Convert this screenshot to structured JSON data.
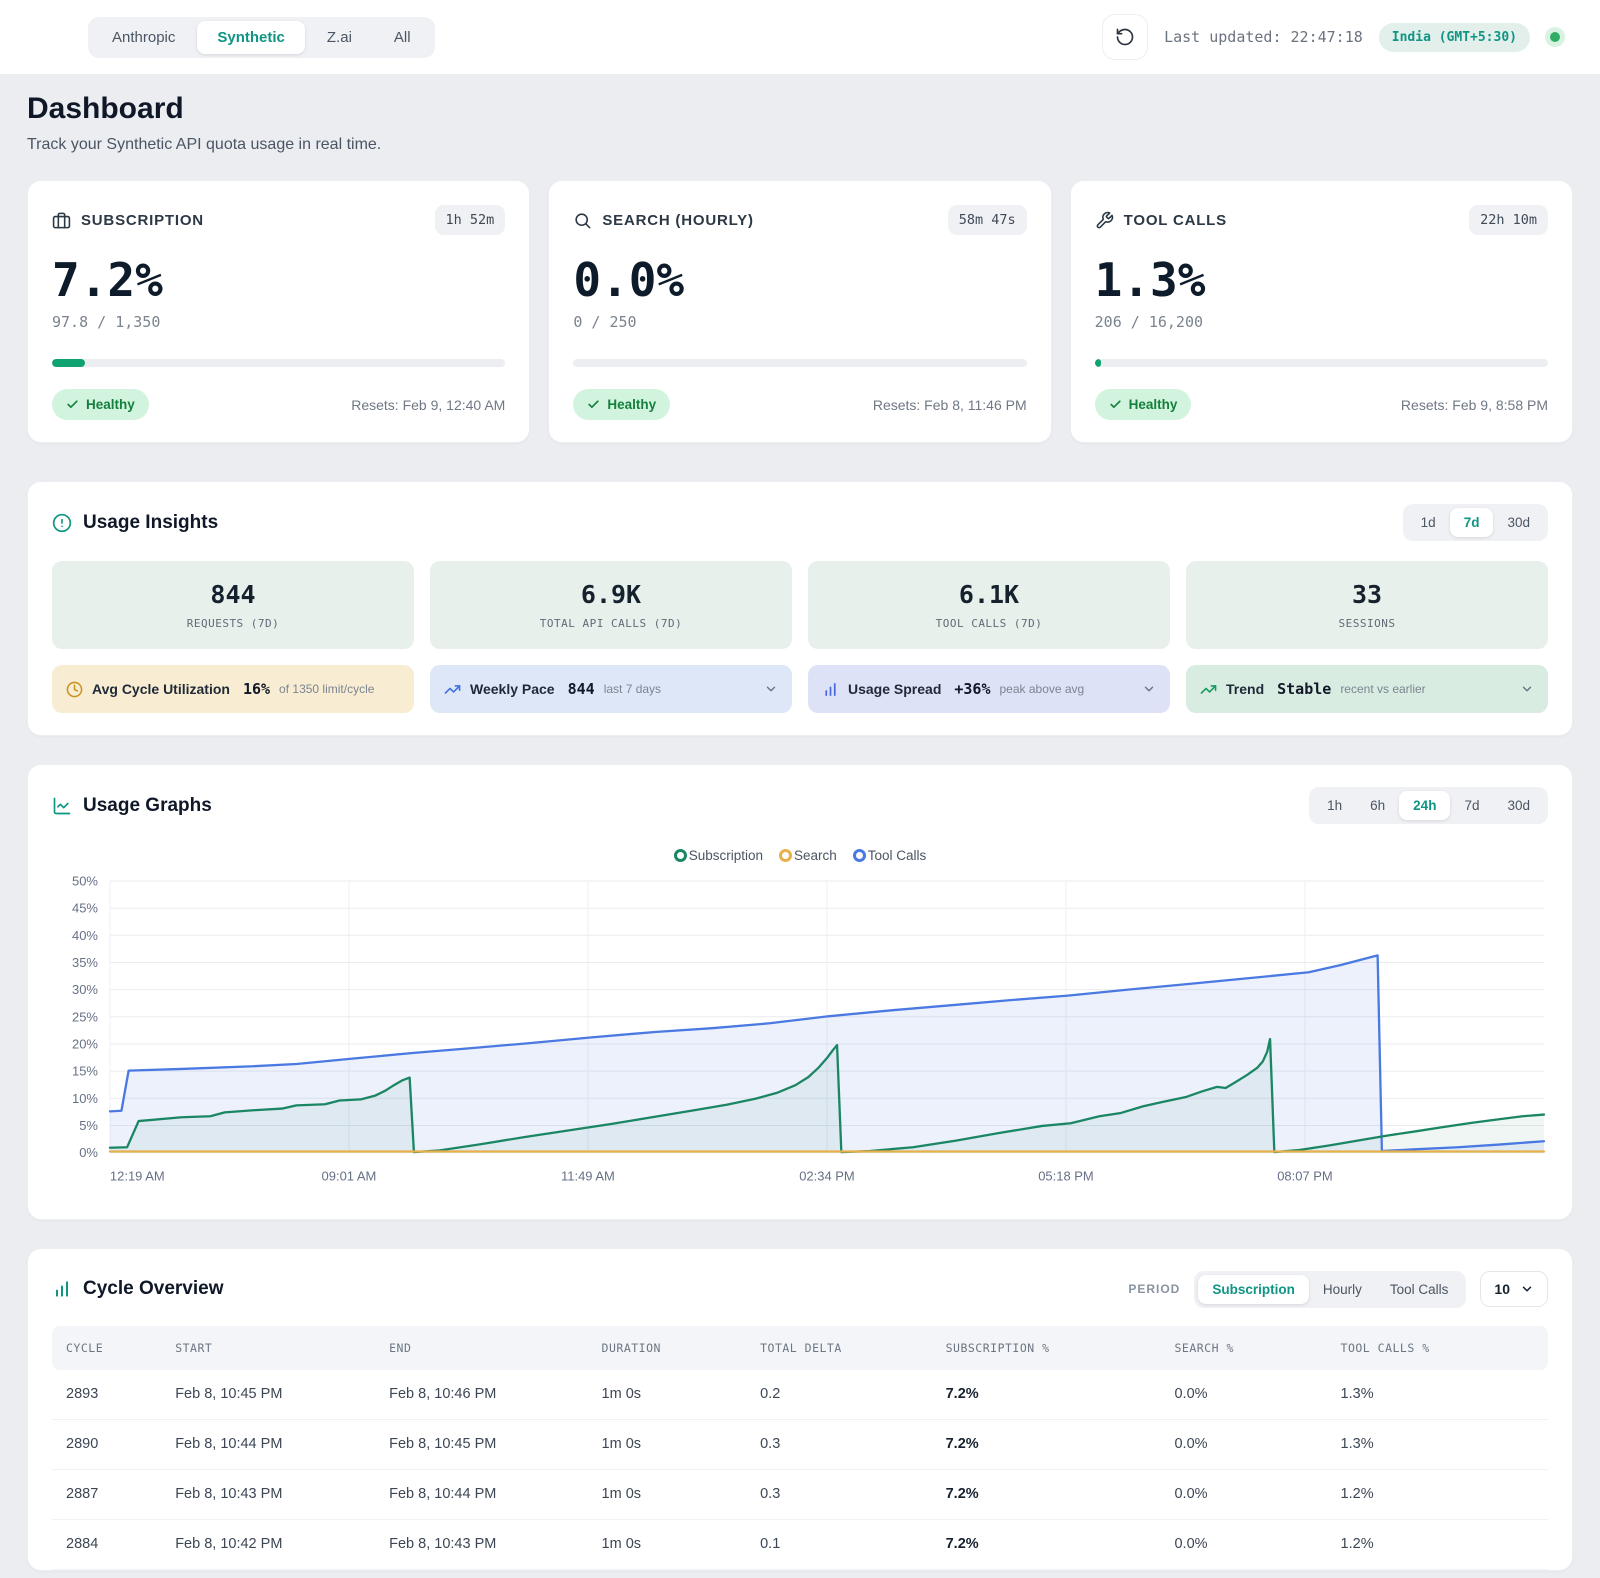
{
  "topbar": {
    "tabs": [
      {
        "label": "Anthropic",
        "active": false
      },
      {
        "label": "Synthetic",
        "active": true
      },
      {
        "label": "Z.ai",
        "active": false
      },
      {
        "label": "All",
        "active": false
      }
    ],
    "last_updated": "Last updated: 22:47:18",
    "timezone_badge": "India (GMT+5:30)"
  },
  "header": {
    "title": "Dashboard",
    "subtitle": "Track your Synthetic API quota usage in real time."
  },
  "quota_cards": [
    {
      "icon": "briefcase-icon",
      "title": "SUBSCRIPTION",
      "time_remaining": "1h 52m",
      "percent": "7.2%",
      "usage": "97.8 / 1,350",
      "progress": 7.2,
      "status": "Healthy",
      "resets": "Resets: Feb 9, 12:40 AM"
    },
    {
      "icon": "search-icon",
      "title": "SEARCH (HOURLY)",
      "time_remaining": "58m 47s",
      "percent": "0.0%",
      "usage": "0 / 250",
      "progress": 0,
      "status": "Healthy",
      "resets": "Resets: Feb 8, 11:46 PM"
    },
    {
      "icon": "wrench-icon",
      "title": "TOOL CALLS",
      "time_remaining": "22h 10m",
      "percent": "1.3%",
      "usage": "206 / 16,200",
      "progress": 1.3,
      "status": "Healthy",
      "resets": "Resets: Feb 9, 8:58 PM"
    }
  ],
  "insights": {
    "title": "Usage Insights",
    "ranges": [
      "1d",
      "7d",
      "30d"
    ],
    "active_range": "7d",
    "tiles": [
      {
        "value": "844",
        "label": "REQUESTS (7D)"
      },
      {
        "value": "6.9K",
        "label": "TOTAL API CALLS (7D)"
      },
      {
        "value": "6.1K",
        "label": "TOOL CALLS (7D)"
      },
      {
        "value": "33",
        "label": "SESSIONS"
      }
    ],
    "pills": [
      {
        "icon": "clock-icon",
        "label": "Avg Cycle Utilization",
        "value": "16%",
        "suffix": "of 1350 limit/cycle",
        "bg": "#f8ecd2",
        "icon_color": "#c9941f",
        "dropdown": false
      },
      {
        "icon": "trending-up-icon",
        "label": "Weekly Pace",
        "value": "844",
        "suffix": "last 7 days",
        "bg": "#dde7f8",
        "icon_color": "#3e6fe0",
        "dropdown": true
      },
      {
        "icon": "bar-chart-icon",
        "label": "Usage Spread",
        "value": "+36%",
        "suffix": "peak above avg",
        "bg": "#dde2f6",
        "icon_color": "#4a66dd",
        "dropdown": true
      },
      {
        "icon": "trending-up-icon",
        "label": "Trend",
        "value": "Stable",
        "suffix": "recent vs earlier",
        "bg": "#d8ece1",
        "icon_color": "#149a62",
        "dropdown": true
      }
    ]
  },
  "graphs": {
    "title": "Usage Graphs",
    "ranges": [
      "1h",
      "6h",
      "24h",
      "7d",
      "30d"
    ],
    "active_range": "24h",
    "chart_data": {
      "type": "line",
      "ylim": [
        0,
        50
      ],
      "y_tick_step": 5,
      "y_tick_suffix": "%",
      "x_ticks": [
        "12:19 AM",
        "09:01 AM",
        "11:49 AM",
        "02:34 PM",
        "05:18 PM",
        "08:07 PM"
      ],
      "grid": true,
      "legend_position": "top",
      "series": [
        {
          "name": "Subscription",
          "color": "#1b8663",
          "fill": "rgba(27,134,99,0.07)",
          "draw_order": 1,
          "points": [
            [
              0,
              0.9
            ],
            [
              0.012,
              1
            ],
            [
              0.02,
              5.8
            ],
            [
              0.05,
              6.5
            ],
            [
              0.07,
              6.7
            ],
            [
              0.08,
              7.4
            ],
            [
              0.1,
              7.8
            ],
            [
              0.12,
              8.1
            ],
            [
              0.13,
              8.7
            ],
            [
              0.15,
              8.9
            ],
            [
              0.16,
              9.6
            ],
            [
              0.175,
              9.8
            ],
            [
              0.185,
              10.5
            ],
            [
              0.192,
              11.4
            ],
            [
              0.198,
              12.4
            ],
            [
              0.204,
              13.3
            ],
            [
              0.209,
              13.8
            ],
            [
              0.212,
              0.1
            ],
            [
              0.23,
              0.4
            ],
            [
              0.26,
              1.6
            ],
            [
              0.29,
              2.9
            ],
            [
              0.32,
              4.1
            ],
            [
              0.35,
              5.3
            ],
            [
              0.38,
              6.6
            ],
            [
              0.41,
              7.9
            ],
            [
              0.43,
              8.8
            ],
            [
              0.45,
              9.9
            ],
            [
              0.465,
              11
            ],
            [
              0.478,
              12.4
            ],
            [
              0.487,
              13.9
            ],
            [
              0.494,
              15.6
            ],
            [
              0.5,
              17.4
            ],
            [
              0.504,
              18.8
            ],
            [
              0.507,
              19.8
            ],
            [
              0.51,
              0.1
            ],
            [
              0.53,
              0.3
            ],
            [
              0.56,
              1
            ],
            [
              0.59,
              2.2
            ],
            [
              0.62,
              3.6
            ],
            [
              0.65,
              4.9
            ],
            [
              0.67,
              5.4
            ],
            [
              0.69,
              6.7
            ],
            [
              0.705,
              7.3
            ],
            [
              0.72,
              8.5
            ],
            [
              0.735,
              9.4
            ],
            [
              0.75,
              10.2
            ],
            [
              0.762,
              11.3
            ],
            [
              0.772,
              12.1
            ],
            [
              0.778,
              11.9
            ],
            [
              0.785,
              13
            ],
            [
              0.793,
              14.3
            ],
            [
              0.8,
              15.6
            ],
            [
              0.804,
              16.8
            ],
            [
              0.807,
              18.6
            ],
            [
              0.809,
              20.9
            ],
            [
              0.812,
              0.1
            ],
            [
              0.83,
              0.5
            ],
            [
              0.85,
              1.3
            ],
            [
              0.87,
              2.2
            ],
            [
              0.89,
              3.1
            ],
            [
              0.91,
              3.9
            ],
            [
              0.93,
              4.7
            ],
            [
              0.95,
              5.5
            ],
            [
              0.97,
              6.2
            ],
            [
              0.985,
              6.7
            ],
            [
              1,
              7
            ]
          ]
        },
        {
          "name": "Search",
          "color": "#e7b04a",
          "fill": "none",
          "draw_order": 2,
          "points": [
            [
              0,
              0.2
            ],
            [
              1,
              0.2
            ]
          ]
        },
        {
          "name": "Tool Calls",
          "color": "#4a79e2",
          "fill": "rgba(74,121,226,0.10)",
          "draw_order": 0,
          "points": [
            [
              0,
              7.6
            ],
            [
              0.008,
              7.7
            ],
            [
              0.013,
              15.1
            ],
            [
              0.05,
              15.4
            ],
            [
              0.1,
              15.9
            ],
            [
              0.13,
              16.3
            ],
            [
              0.169,
              17.3
            ],
            [
              0.21,
              18.3
            ],
            [
              0.25,
              19.2
            ],
            [
              0.29,
              20.1
            ],
            [
              0.335,
              21.2
            ],
            [
              0.38,
              22.2
            ],
            [
              0.42,
              22.9
            ],
            [
              0.46,
              23.8
            ],
            [
              0.501,
              25.1
            ],
            [
              0.545,
              26.2
            ],
            [
              0.59,
              27.2
            ],
            [
              0.63,
              28.1
            ],
            [
              0.668,
              28.9
            ],
            [
              0.71,
              30
            ],
            [
              0.75,
              31
            ],
            [
              0.79,
              32
            ],
            [
              0.836,
              33.2
            ],
            [
              0.858,
              34.5
            ],
            [
              0.874,
              35.6
            ],
            [
              0.884,
              36.3
            ],
            [
              0.887,
              0.3
            ],
            [
              0.91,
              0.6
            ],
            [
              0.94,
              1
            ],
            [
              0.97,
              1.5
            ],
            [
              1,
              2.1
            ]
          ]
        }
      ]
    }
  },
  "cycles": {
    "title": "Cycle Overview",
    "period_label": "PERIOD",
    "periods": [
      "Subscription",
      "Hourly",
      "Tool Calls"
    ],
    "active_period": "Subscription",
    "page_size": "10",
    "columns": [
      "CYCLE",
      "START",
      "END",
      "DURATION",
      "TOTAL DELTA",
      "SUBSCRIPTION %",
      "SEARCH %",
      "TOOL CALLS %"
    ],
    "rows": [
      [
        "2893",
        "Feb 8, 10:45 PM",
        "Feb 8, 10:46 PM",
        "1m 0s",
        "0.2",
        "7.2%",
        "0.0%",
        "1.3%"
      ],
      [
        "2890",
        "Feb 8, 10:44 PM",
        "Feb 8, 10:45 PM",
        "1m 0s",
        "0.3",
        "7.2%",
        "0.0%",
        "1.3%"
      ],
      [
        "2887",
        "Feb 8, 10:43 PM",
        "Feb 8, 10:44 PM",
        "1m 0s",
        "0.3",
        "7.2%",
        "0.0%",
        "1.2%"
      ],
      [
        "2884",
        "Feb 8, 10:42 PM",
        "Feb 8, 10:43 PM",
        "1m 0s",
        "0.1",
        "7.2%",
        "0.0%",
        "1.2%"
      ]
    ]
  },
  "colors": {
    "accent": "#0f9584",
    "progress": "#10a372",
    "healthy_bg": "#d2f4de",
    "healthy_text": "#15803d",
    "page_bg": "#ebedf1"
  }
}
